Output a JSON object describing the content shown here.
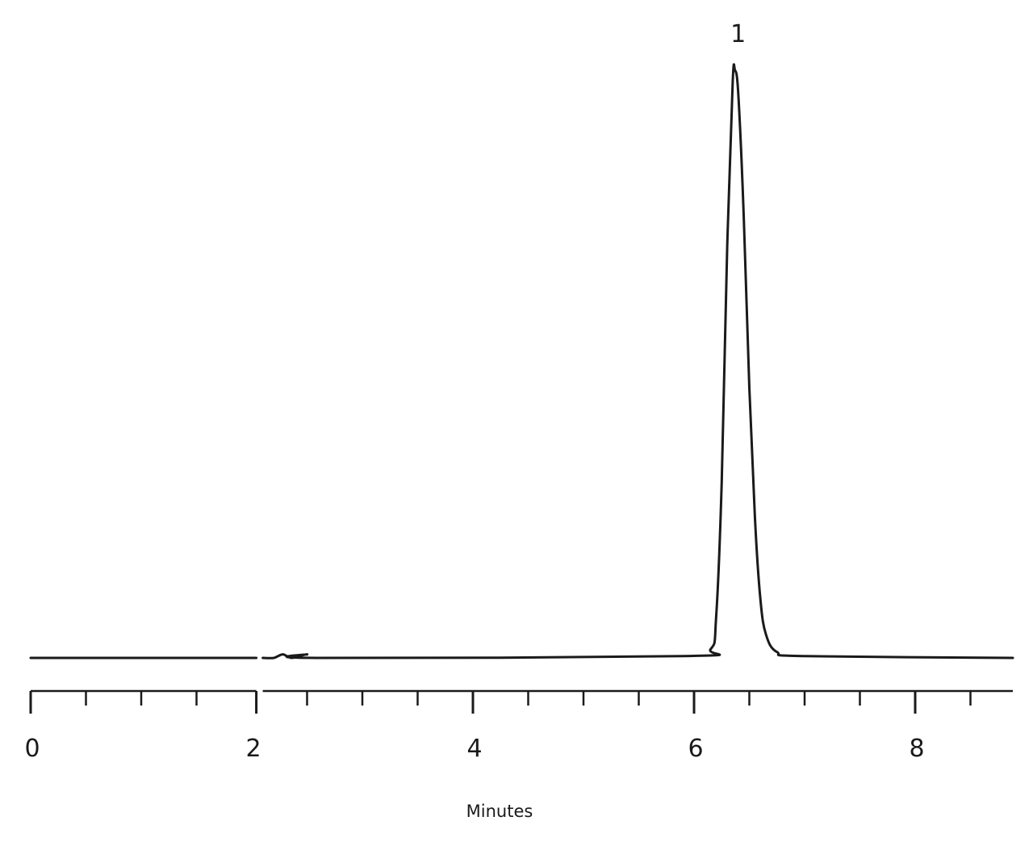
{
  "chart_data": {
    "type": "line",
    "title": "",
    "xlabel": "Minutes",
    "ylabel": "",
    "xlim": [
      0,
      8.9
    ],
    "ylim": [
      0,
      1
    ],
    "grid": false,
    "x_ticks_major": [
      0,
      2,
      4,
      6,
      8
    ],
    "x_tick_labels": [
      "0",
      "2",
      "4",
      "6",
      "8"
    ],
    "x_ticks_minor_step": 0.5,
    "axis_break_at": 2.07,
    "series": [
      {
        "values": [
          {
            "x": 0,
            "y": 0.0
          },
          {
            "x": 2.2,
            "y": 0.0
          },
          {
            "x": 2.28,
            "y": 0.006
          },
          {
            "x": 2.36,
            "y": 0.0
          },
          {
            "x": 2.5,
            "y": 0.006
          },
          {
            "x": 2.58,
            "y": 0.0
          },
          {
            "x": 5.9,
            "y": 0.003
          },
          {
            "x": 6.15,
            "y": 0.015
          },
          {
            "x": 6.2,
            "y": 0.07
          },
          {
            "x": 6.25,
            "y": 0.3
          },
          {
            "x": 6.3,
            "y": 0.7
          },
          {
            "x": 6.35,
            "y": 0.98
          },
          {
            "x": 6.37,
            "y": 1.0
          },
          {
            "x": 6.4,
            "y": 0.96
          },
          {
            "x": 6.45,
            "y": 0.75
          },
          {
            "x": 6.5,
            "y": 0.46
          },
          {
            "x": 6.55,
            "y": 0.24
          },
          {
            "x": 6.6,
            "y": 0.1
          },
          {
            "x": 6.65,
            "y": 0.04
          },
          {
            "x": 6.75,
            "y": 0.01
          },
          {
            "x": 7.0,
            "y": 0.003
          },
          {
            "x": 8.9,
            "y": 0.0
          }
        ]
      }
    ],
    "annotations": [
      {
        "text": "1",
        "x": 6.37
      }
    ]
  }
}
